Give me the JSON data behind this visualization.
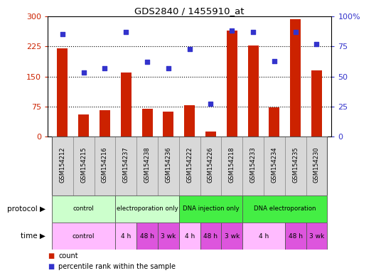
{
  "title": "GDS2840 / 1455910_at",
  "samples": [
    "GSM154212",
    "GSM154215",
    "GSM154216",
    "GSM154237",
    "GSM154238",
    "GSM154236",
    "GSM154222",
    "GSM154226",
    "GSM154218",
    "GSM154233",
    "GSM154234",
    "GSM154235",
    "GSM154230"
  ],
  "bar_values": [
    220,
    55,
    65,
    160,
    70,
    62,
    78,
    12,
    265,
    228,
    72,
    293,
    165
  ],
  "dot_values": [
    85,
    53,
    57,
    87,
    62,
    57,
    73,
    27,
    88,
    87,
    63,
    87,
    77
  ],
  "bar_color": "#cc2200",
  "dot_color": "#3333cc",
  "bar_width": 0.5,
  "ylim_left": [
    0,
    300
  ],
  "ylim_right": [
    0,
    100
  ],
  "yticks_left": [
    0,
    75,
    150,
    225,
    300
  ],
  "ytick_labels_left": [
    "0",
    "75",
    "150",
    "225",
    "300"
  ],
  "yticks_right": [
    0,
    25,
    50,
    75,
    100
  ],
  "ytick_labels_right": [
    "0",
    "25",
    "50",
    "75",
    "100%"
  ],
  "hlines": [
    75,
    150,
    225
  ],
  "proto_data": [
    {
      "label": "control",
      "start": 0,
      "end": 2,
      "color": "#ccffcc"
    },
    {
      "label": "electroporation only",
      "start": 3,
      "end": 5,
      "color": "#ccffcc"
    },
    {
      "label": "DNA injection only",
      "start": 6,
      "end": 8,
      "color": "#44ee44"
    },
    {
      "label": "DNA electroporation",
      "start": 9,
      "end": 12,
      "color": "#44ee44"
    }
  ],
  "time_data": [
    {
      "label": "control",
      "start": 0,
      "end": 2,
      "color": "#ffbbff"
    },
    {
      "label": "4 h",
      "start": 3,
      "end": 3,
      "color": "#ffbbff"
    },
    {
      "label": "48 h",
      "start": 4,
      "end": 4,
      "color": "#dd55dd"
    },
    {
      "label": "3 wk",
      "start": 5,
      "end": 5,
      "color": "#dd55dd"
    },
    {
      "label": "4 h",
      "start": 6,
      "end": 6,
      "color": "#ffbbff"
    },
    {
      "label": "48 h",
      "start": 7,
      "end": 7,
      "color": "#dd55dd"
    },
    {
      "label": "3 wk",
      "start": 8,
      "end": 8,
      "color": "#dd55dd"
    },
    {
      "label": "4 h",
      "start": 9,
      "end": 10,
      "color": "#ffbbff"
    },
    {
      "label": "48 h",
      "start": 11,
      "end": 11,
      "color": "#dd55dd"
    },
    {
      "label": "3 wk",
      "start": 12,
      "end": 12,
      "color": "#dd55dd"
    }
  ],
  "bg_color": "#ffffff"
}
